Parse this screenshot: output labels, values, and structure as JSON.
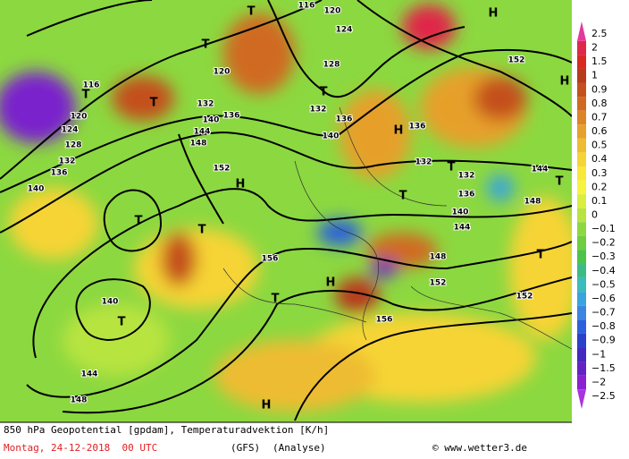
{
  "map": {
    "labels": [
      "116",
      "120",
      "124",
      "128",
      "132",
      "136",
      "140",
      "136",
      "H",
      "132",
      "T",
      "132",
      "144",
      "T",
      "136",
      "T",
      "140",
      "144",
      "148",
      "152",
      "152",
      "T",
      "156",
      "H",
      "156",
      "T",
      "H",
      "152",
      "148",
      "144",
      "140",
      "136",
      "132",
      "T",
      "T",
      "116",
      "120",
      "124",
      "128",
      "132",
      "136",
      "140",
      "T",
      "T",
      "140",
      "T",
      "144",
      "148",
      "H",
      "H",
      "152",
      "H",
      "T",
      "T",
      "120",
      "T",
      "148",
      "136"
    ]
  },
  "legend": {
    "labels": [
      "2.5",
      "2",
      "1.5",
      "1",
      "0.9",
      "0.8",
      "0.7",
      "0.6",
      "0.5",
      "0.4",
      "0.3",
      "0.2",
      "0.1",
      "0",
      "−0.1",
      "−0.2",
      "−0.3",
      "−0.4",
      "−0.5",
      "−0.6",
      "−0.7",
      "−0.8",
      "−0.9",
      "−1",
      "−1.5",
      "−2",
      "−2.5"
    ],
    "colors": [
      "#e2399c",
      "#e0284a",
      "#d82a22",
      "#b83a1c",
      "#c4501e",
      "#d06a22",
      "#dc8428",
      "#e6a02c",
      "#eebc30",
      "#f6d436",
      "#f8e83a",
      "#f6f43e",
      "#d8ee40",
      "#b8e440",
      "#8cd840",
      "#6cce40",
      "#4cc44a",
      "#3cbc84",
      "#38bcbc",
      "#38a4dc",
      "#3c84e0",
      "#2c60dc",
      "#2c40cc",
      "#4428c0",
      "#6424c4",
      "#8a22d0",
      "#a834e0"
    ]
  },
  "footer": {
    "title": "850 hPa Geopotential [gpdam], Temperaturadvektion [K/h]",
    "date": "Montag, 24-12-2018  00 UTC",
    "model": "(GFS)",
    "kind": "(Analyse)",
    "source": "© www.wetter3.de"
  }
}
